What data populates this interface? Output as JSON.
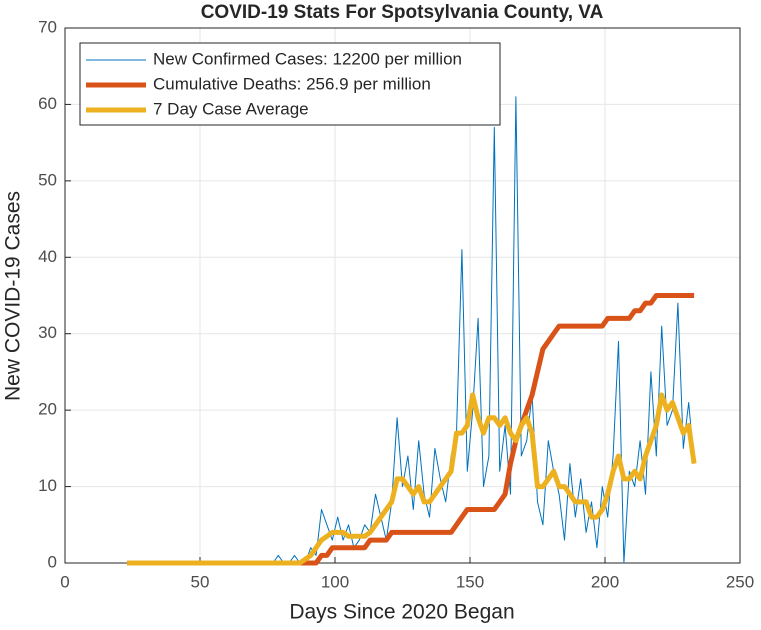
{
  "chart_data": {
    "type": "line",
    "title": "COVID-19 Stats For Spotsylvania County, VA",
    "xlabel": "Days Since 2020 Began",
    "ylabel": "New COVID-19 Cases",
    "xlim": [
      0,
      250
    ],
    "xticks": [
      0,
      50,
      100,
      150,
      200,
      250
    ],
    "ylim": [
      0,
      70
    ],
    "yticks": [
      0,
      10,
      20,
      30,
      40,
      50,
      60,
      70
    ],
    "grid": true,
    "legend": "top-left",
    "x": [
      23,
      25,
      27,
      29,
      31,
      33,
      35,
      37,
      39,
      41,
      43,
      45,
      47,
      49,
      51,
      53,
      55,
      57,
      59,
      61,
      63,
      65,
      67,
      69,
      71,
      73,
      75,
      77,
      79,
      81,
      83,
      85,
      87,
      89,
      91,
      93,
      95,
      97,
      99,
      101,
      103,
      105,
      107,
      109,
      111,
      113,
      115,
      117,
      119,
      121,
      123,
      125,
      127,
      129,
      131,
      133,
      135,
      137,
      139,
      141,
      143,
      145,
      147,
      149,
      151,
      153,
      155,
      157,
      159,
      161,
      163,
      165,
      167,
      169,
      171,
      173,
      175,
      177,
      179,
      181,
      183,
      185,
      187,
      189,
      191,
      193,
      195,
      197,
      199,
      201,
      203,
      205,
      207,
      209,
      211,
      213,
      215,
      217,
      219,
      221,
      223,
      225,
      227,
      229,
      231,
      233
    ],
    "series": [
      {
        "name": "New Confirmed Cases: 12200 per million",
        "color": "#0072BD",
        "width": 1,
        "values": [
          0,
          0,
          0,
          0,
          0,
          0,
          0,
          0,
          0,
          0,
          0,
          0,
          0,
          0,
          0,
          0,
          0,
          0,
          0,
          0,
          0,
          0,
          0,
          0,
          0,
          0,
          0,
          0,
          1,
          0,
          0,
          1,
          0,
          0,
          2,
          1,
          7,
          5,
          3,
          6,
          3,
          5,
          2,
          3,
          5,
          4,
          9,
          6,
          3,
          8,
          19,
          10,
          14,
          7,
          16,
          9,
          6,
          15,
          11,
          8,
          14,
          17,
          41,
          12,
          20,
          32,
          10,
          14,
          57,
          12,
          18,
          9,
          61,
          14,
          16,
          22,
          8,
          5,
          16,
          12,
          9,
          3,
          13,
          6,
          11,
          4,
          8,
          2,
          10,
          6,
          14,
          29,
          0,
          12,
          10,
          16,
          9,
          25,
          14,
          31,
          18,
          20,
          34,
          15,
          21,
          13
        ]
      },
      {
        "name": "Cumulative Deaths: 256.9 per million",
        "color": "#D95319",
        "width": 5,
        "values": [
          0,
          0,
          0,
          0,
          0,
          0,
          0,
          0,
          0,
          0,
          0,
          0,
          0,
          0,
          0,
          0,
          0,
          0,
          0,
          0,
          0,
          0,
          0,
          0,
          0,
          0,
          0,
          0,
          0,
          0,
          0,
          0,
          0,
          0,
          0,
          0,
          1,
          1,
          2,
          2,
          2,
          2,
          2,
          2,
          2,
          3,
          3,
          3,
          3,
          4,
          4,
          4,
          4,
          4,
          4,
          4,
          4,
          4,
          4,
          4,
          4,
          5,
          6,
          7,
          7,
          7,
          7,
          7,
          7,
          8,
          9,
          13,
          16,
          18,
          20,
          22,
          25,
          28,
          29,
          30,
          31,
          31,
          31,
          31,
          31,
          31,
          31,
          31,
          31,
          32,
          32,
          32,
          32,
          32,
          33,
          33,
          34,
          34,
          35,
          35,
          35,
          35,
          35,
          35,
          35,
          35
        ]
      },
      {
        "name": "7 Day Case Average",
        "color": "#EDB120",
        "width": 5,
        "values": [
          0,
          0,
          0,
          0,
          0,
          0,
          0,
          0,
          0,
          0,
          0,
          0,
          0,
          0,
          0,
          0,
          0,
          0,
          0,
          0,
          0,
          0,
          0,
          0,
          0,
          0,
          0,
          0,
          0,
          0,
          0,
          0,
          0,
          0.5,
          1,
          2,
          3,
          3.5,
          4,
          4,
          4,
          3.5,
          3.5,
          3.5,
          3.5,
          4,
          5,
          6,
          7,
          8,
          11,
          11,
          10,
          9,
          10,
          8,
          8,
          9,
          10,
          11,
          12,
          17,
          17,
          18,
          22,
          19,
          17,
          19,
          19,
          18,
          19,
          17,
          16,
          18,
          19,
          17,
          10,
          10,
          11,
          12,
          10,
          10,
          9,
          8,
          8,
          8,
          6,
          6,
          7,
          9,
          12,
          14,
          11,
          11,
          12,
          11,
          14,
          16,
          18,
          22,
          20,
          21,
          19,
          17,
          18,
          13
        ]
      }
    ]
  }
}
